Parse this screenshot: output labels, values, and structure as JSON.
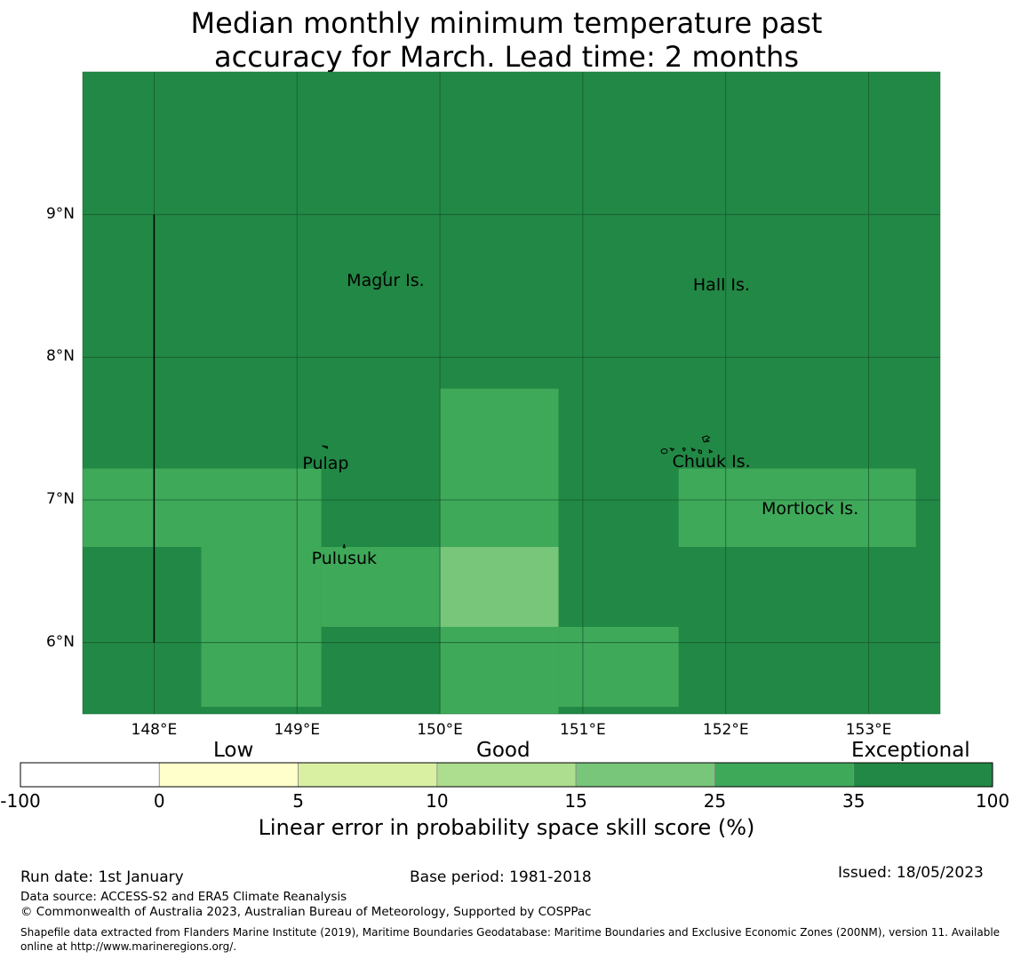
{
  "title_line1": "Median monthly minimum temperature past",
  "title_line2": "accuracy for March. Lead time: 2 months",
  "map": {
    "lon_range": [
      147.5,
      153.5
    ],
    "lat_range": [
      5.5,
      10.0
    ],
    "lon_ticks": [
      {
        "value": 148,
        "label": "148°E"
      },
      {
        "value": 149,
        "label": "149°E"
      },
      {
        "value": 150,
        "label": "150°E"
      },
      {
        "value": 151,
        "label": "151°E"
      },
      {
        "value": 152,
        "label": "152°E"
      },
      {
        "value": 153,
        "label": "153°E"
      }
    ],
    "lat_ticks": [
      {
        "value": 9,
        "label": "9°N"
      },
      {
        "value": 8,
        "label": "8°N"
      },
      {
        "value": 7,
        "label": "7°N"
      },
      {
        "value": 6,
        "label": "6°N"
      }
    ],
    "background_color": "#228845",
    "skill_cells": [
      {
        "lon": [
          147.5,
          149.17
        ],
        "lat": [
          6.67,
          7.22
        ],
        "color": "#3fa95a"
      },
      {
        "lon": [
          148.33,
          149.17
        ],
        "lat": [
          5.55,
          6.67
        ],
        "color": "#3fa95a"
      },
      {
        "lon": [
          149.17,
          150.0
        ],
        "lat": [
          6.11,
          6.67
        ],
        "color": "#3fa95a"
      },
      {
        "lon": [
          150.0,
          150.83
        ],
        "lat": [
          6.67,
          7.78
        ],
        "color": "#3fa95a"
      },
      {
        "lon": [
          150.0,
          150.83
        ],
        "lat": [
          6.11,
          6.67
        ],
        "color": "#78c67a"
      },
      {
        "lon": [
          150.0,
          150.83
        ],
        "lat": [
          5.5,
          6.11
        ],
        "color": "#3fa95a"
      },
      {
        "lon": [
          150.83,
          151.67
        ],
        "lat": [
          5.55,
          6.11
        ],
        "color": "#3fa95a"
      },
      {
        "lon": [
          151.67,
          153.33
        ],
        "lat": [
          6.67,
          7.22
        ],
        "color": "#3fa95a"
      }
    ],
    "boundary_line": {
      "lon": 148.0,
      "lat": [
        6.0,
        9.0
      ]
    },
    "places": [
      {
        "name": "Magur Is.",
        "lon": 149.62,
        "lat": 8.53
      },
      {
        "name": "Hall Is.",
        "lon": 151.97,
        "lat": 8.5
      },
      {
        "name": "Pulap",
        "lon": 149.2,
        "lat": 7.25
      },
      {
        "name": "Chuuk Is.",
        "lon": 151.9,
        "lat": 7.26
      },
      {
        "name": "Mortlock Is.",
        "lon": 152.59,
        "lat": 6.93
      },
      {
        "name": "Pulusuk",
        "lon": 149.33,
        "lat": 6.58
      }
    ]
  },
  "colorbar": {
    "categories": [
      "Low",
      "Good",
      "Exceptional"
    ],
    "boundaries": [
      "-100",
      "0",
      "5",
      "10",
      "15",
      "25",
      "35",
      "100"
    ],
    "colors": [
      "#ffffff",
      "#ffffcc",
      "#d9f0a3",
      "#addd8e",
      "#78c67a",
      "#3fa95a",
      "#228845"
    ],
    "label": "Linear error in probability space skill score (%)"
  },
  "footer": {
    "run_date": "Run date: 1st January",
    "base_period": "Base period: 1981-2018",
    "issued": "Issued: 18/05/2023",
    "data_source": "Data source: ACCESS-S2 and ERA5 Climate Reanalysis",
    "copyright": "© Commonwealth of Australia 2023, Australian Bureau of Meteorology, Supported by COSPPac",
    "shapefile_line1": "Shapefile data extracted from Flanders Marine Institute (2019), Maritime Boundaries Geodatabase: Maritime Boundaries and Exclusive Economic Zones (200NM), version 11. Available",
    "shapefile_line2": "online at http://www.marineregions.org/."
  }
}
